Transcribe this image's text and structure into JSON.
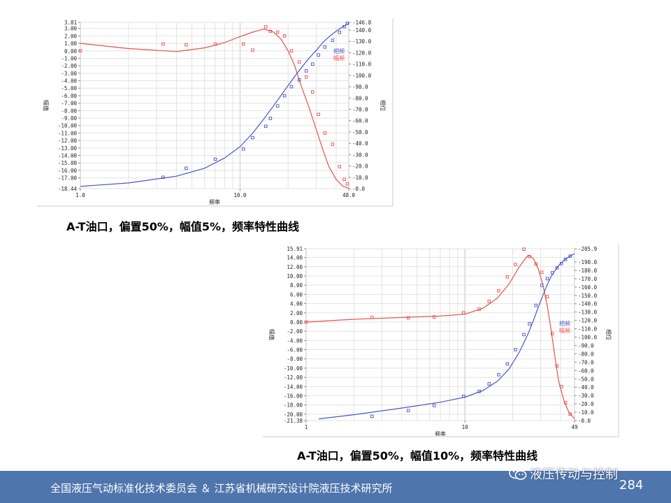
{
  "charts": [
    {
      "id": "chart1",
      "caption": "A-T油口，偏置50%，幅值5%，频率特性曲线",
      "xlabel": "频率",
      "ylabel_left": "幅值",
      "ylabel_right": "相位",
      "legend": {
        "phase": "相频",
        "amp": "幅频"
      },
      "x_ticks": [
        "1.0",
        "10.0",
        "48.0"
      ]
    },
    {
      "id": "chart2",
      "caption": "A-T油口，偏置50%，幅值10%，频率特性曲线",
      "xlabel": "频率",
      "ylabel_left": "幅值",
      "ylabel_right": "相位",
      "legend": {
        "phase": "相频",
        "amp": "幅频"
      },
      "x_ticks": [
        "1",
        "10",
        "49"
      ]
    }
  ],
  "footer": {
    "text": "全国液压气动标准化技术委员会 ＆ 江苏省机械研究设计院液压技术研究所",
    "wechat": "液压传动与控制",
    "page": "284"
  },
  "colors": {
    "amp": "#e8524a",
    "phase": "#4a55c8",
    "footer_bg": "#4f75ad"
  },
  "chart_data": [
    {
      "type": "line",
      "title": "A-T油口，偏置50%，幅值5%，频率特性曲线",
      "xlabel": "频率",
      "ylabel": "幅值",
      "y2label": "相位",
      "x_scale": "log",
      "xlim": [
        1.0,
        48.0
      ],
      "ylim": [
        -18.44,
        3.81
      ],
      "y2lim": [
        0.0,
        146.8
      ],
      "left_ticks": [
        "3.81",
        "3.00",
        "2.00",
        "1.00",
        "0.00",
        "-1.00",
        "-2.00",
        "-3.00",
        "-4.00",
        "-5.00",
        "-6.00",
        "-7.00",
        "-8.00",
        "-9.00",
        "-10.00",
        "-11.00",
        "-12.00",
        "-13.00",
        "-14.00",
        "-15.00",
        "-16.00",
        "-17.00",
        "-18.44"
      ],
      "right_ticks": [
        "146.8",
        "140.0",
        "130.0",
        "120.0",
        "110.0",
        "100.0",
        "90.0",
        "80.0",
        "70.0",
        "60.0",
        "50.0",
        "40.0",
        "30.0",
        "20.0",
        "10.0",
        "0.0"
      ],
      "grid": true,
      "legend_position": "right",
      "series": [
        {
          "name": "幅频",
          "axis": "left",
          "color": "#e8524a",
          "x": [
            1.0,
            2.0,
            4.0,
            6.0,
            8.0,
            10.0,
            12.0,
            14.0,
            16.0,
            18.0,
            20.0,
            22.0,
            24.0,
            27.0,
            30.0,
            33.0,
            36.0,
            40.0,
            44.0,
            48.0
          ],
          "y": [
            1.0,
            0.3,
            -0.1,
            0.4,
            1.1,
            1.9,
            2.5,
            2.9,
            2.6,
            1.6,
            0.0,
            -2.0,
            -4.5,
            -7.5,
            -10.5,
            -13.2,
            -15.5,
            -17.2,
            -18.1,
            -18.4
          ]
        },
        {
          "name": "幅频 测点",
          "axis": "left",
          "color": "#e8524a",
          "marker": "square",
          "line": false,
          "x": [
            1.0,
            3.3,
            4.6,
            7.0,
            10.5,
            12.0,
            14.5,
            15.5,
            17.2,
            19.0,
            21.0,
            23.5,
            26.0,
            28.5,
            31.0,
            34.0,
            38.0,
            42.0,
            45.0,
            47.0
          ],
          "y": [
            0.0,
            0.9,
            0.8,
            0.9,
            0.9,
            0.1,
            3.2,
            2.6,
            2.5,
            2.0,
            0.0,
            -1.5,
            -3.5,
            -5.5,
            -8.5,
            -11.0,
            -12.5,
            -15.5,
            -17.2,
            -17.8
          ]
        },
        {
          "name": "相频",
          "axis": "right",
          "color": "#4a55c8",
          "x": [
            1.0,
            2.0,
            4.0,
            6.0,
            8.0,
            10.0,
            12.0,
            14.0,
            16.0,
            18.0,
            20.0,
            22.0,
            24.0,
            27.0,
            30.0,
            33.0,
            36.0,
            40.0,
            44.0,
            48.0
          ],
          "y": [
            2.0,
            5.0,
            11.0,
            18.0,
            27.0,
            37.0,
            49.0,
            61.0,
            72.0,
            82.0,
            91.0,
            99.0,
            106.0,
            115.0,
            122.0,
            129.0,
            134.0,
            139.0,
            143.0,
            146.0
          ]
        },
        {
          "name": "相频 测点",
          "axis": "right",
          "color": "#4a55c8",
          "marker": "square",
          "line": false,
          "x": [
            3.3,
            4.6,
            7.0,
            10.5,
            12.0,
            14.5,
            15.5,
            17.2,
            19.0,
            21.0,
            23.5,
            26.0,
            28.5,
            31.0,
            34.0,
            38.0,
            42.0,
            45.0,
            47.0
          ],
          "y": [
            10.0,
            18.0,
            26.0,
            35.0,
            45.0,
            55.0,
            62.0,
            73.0,
            82.0,
            90.0,
            96.0,
            104.0,
            110.0,
            118.0,
            125.0,
            131.0,
            138.0,
            143.0,
            146.0
          ]
        }
      ]
    },
    {
      "type": "line",
      "title": "A-T油口，偏置50%，幅值10%，频率特性曲线",
      "xlabel": "频率",
      "ylabel": "幅值",
      "y2label": "相位",
      "x_scale": "log",
      "xlim": [
        1.0,
        49.0
      ],
      "ylim": [
        -21.38,
        15.91
      ],
      "y2lim": [
        0.0,
        205.9
      ],
      "left_ticks": [
        "15.91",
        "14.00",
        "12.00",
        "10.00",
        "8.00",
        "6.00",
        "4.00",
        "2.00",
        "0.00",
        "-2.00",
        "-4.00",
        "-6.00",
        "-8.00",
        "-10.00",
        "-12.00",
        "-14.00",
        "-16.00",
        "-18.00",
        "-20.00",
        "-21.38"
      ],
      "right_ticks": [
        "205.9",
        "190.0",
        "180.0",
        "170.0",
        "160.0",
        "150.0",
        "140.0",
        "130.0",
        "120.0",
        "110.0",
        "100.0",
        "90.0",
        "80.0",
        "70.0",
        "60.0",
        "50.0",
        "40.0",
        "30.0",
        "20.0",
        "10.0",
        "0.0"
      ],
      "grid": true,
      "legend_position": "right",
      "series": [
        {
          "name": "幅频",
          "axis": "left",
          "color": "#e8524a",
          "x": [
            1.0,
            2.0,
            4.0,
            7.0,
            10.0,
            13.0,
            16.0,
            19.0,
            22.0,
            25.0,
            27.0,
            29.0,
            31.0,
            33.0,
            35.0,
            37.0,
            39.0,
            42.0,
            45.0,
            49.0
          ],
          "y": [
            0.0,
            0.6,
            1.0,
            1.3,
            1.7,
            3.0,
            5.2,
            8.3,
            12.0,
            14.5,
            13.8,
            11.5,
            8.0,
            3.5,
            -2.0,
            -8.0,
            -13.0,
            -17.0,
            -19.5,
            -21.0
          ]
        },
        {
          "name": "幅频 测点",
          "axis": "left",
          "color": "#e8524a",
          "marker": "square",
          "line": false,
          "x": [
            1.0,
            2.6,
            4.4,
            6.4,
            9.8,
            12.3,
            14.2,
            16.3,
            18.5,
            20.8,
            23.5,
            25.5,
            28.0,
            30.5,
            33.0,
            35.5,
            38.0,
            40.5,
            43.0,
            46.0
          ],
          "y": [
            0.0,
            1.0,
            0.9,
            1.1,
            2.0,
            2.8,
            4.5,
            6.8,
            9.8,
            12.5,
            15.8,
            14.2,
            12.6,
            10.8,
            5.5,
            -2.5,
            -9.5,
            -14.0,
            -17.5,
            -20.0
          ]
        },
        {
          "name": "相频",
          "axis": "right",
          "color": "#4a55c8",
          "x": [
            1.2,
            2.0,
            4.0,
            7.0,
            10.0,
            13.0,
            16.0,
            19.0,
            22.0,
            25.0,
            27.0,
            29.0,
            31.0,
            33.0,
            35.0,
            37.0,
            39.0,
            42.0,
            45.0,
            49.0
          ],
          "y": [
            2.0,
            7.0,
            15.0,
            22.0,
            28.0,
            36.0,
            47.0,
            62.0,
            82.0,
            104.0,
            120.0,
            136.0,
            150.0,
            163.0,
            173.0,
            180.0,
            186.0,
            192.0,
            196.0,
            200.0
          ]
        },
        {
          "name": "相频 测点",
          "axis": "right",
          "color": "#4a55c8",
          "marker": "square",
          "line": false,
          "x": [
            2.6,
            4.4,
            6.4,
            9.8,
            12.3,
            14.2,
            16.3,
            18.5,
            20.8,
            23.5,
            25.5,
            28.0,
            30.5,
            33.0,
            35.5,
            38.0,
            40.5,
            43.0,
            46.0
          ],
          "y": [
            5.0,
            12.0,
            18.0,
            29.0,
            35.0,
            44.0,
            55.0,
            68.0,
            85.0,
            103.0,
            116.0,
            138.0,
            162.0,
            170.0,
            177.0,
            183.0,
            188.0,
            193.0,
            197.0
          ]
        }
      ]
    }
  ]
}
